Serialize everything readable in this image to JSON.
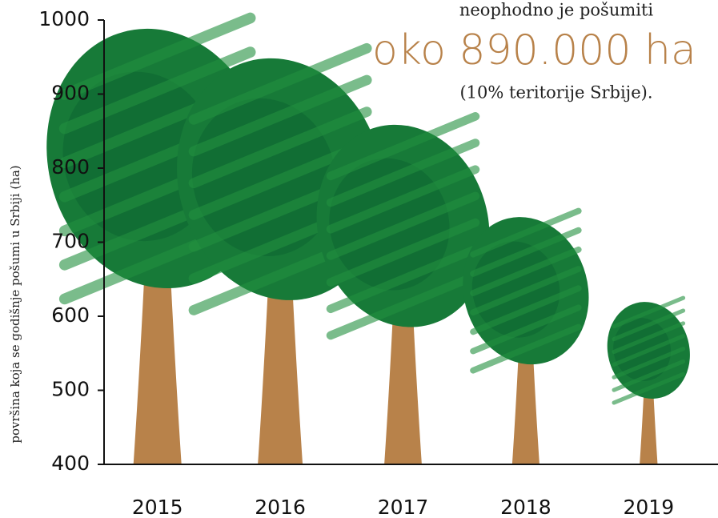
{
  "chart_data": {
    "type": "pictogram",
    "y_label": "površina koja se godišnje pošumi u Srbiji (ha)",
    "annotation": {
      "line1": "neophodno je pošumiti",
      "highlight": "oko 890.000 ha",
      "line3": "(10% teritorije Srbije)."
    },
    "categories": [
      "2015",
      "2016",
      "2017",
      "2018",
      "2019"
    ],
    "values": [
      990,
      950,
      860,
      735,
      620
    ],
    "crown_color": "#177a38",
    "trunk_color": "#b8824a",
    "ylim": [
      400,
      1000
    ],
    "yticks": [
      400,
      500,
      600,
      700,
      800,
      900,
      1000
    ]
  }
}
